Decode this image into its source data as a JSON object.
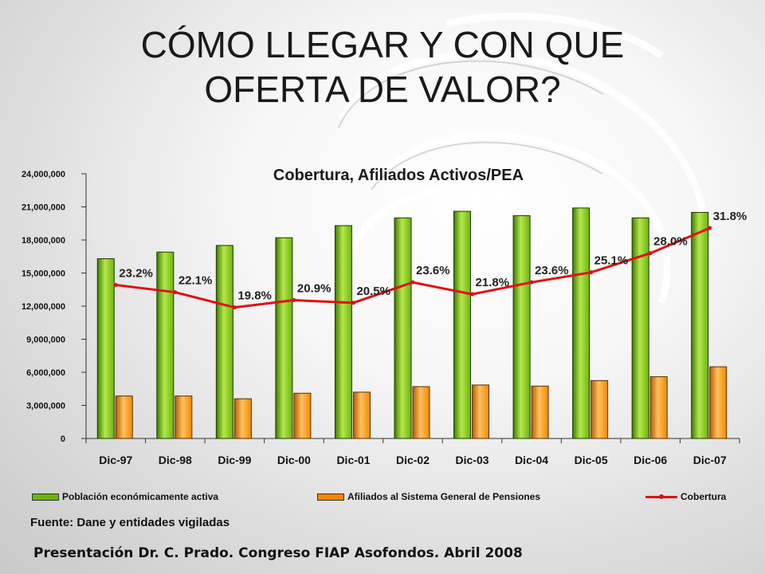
{
  "slide": {
    "title_line1": "CÓMO LLEGAR Y CON QUE",
    "title_line2": "OFERTA DE VALOR?",
    "source": "Fuente: Dane y entidades vigiladas",
    "presenter": "Presentación Dr. C. Prado. Congreso FIAP Asofondos. Abril 2008"
  },
  "colors": {
    "pea": "#6db30e",
    "afiliados": "#f08a00",
    "cobertura": "#e01010"
  },
  "chart_data": {
    "type": "bar",
    "title": "Cobertura, Afiliados Activos/PEA",
    "categories": [
      "Dic-97",
      "Dic-98",
      "Dic-99",
      "Dic-00",
      "Dic-01",
      "Dic-02",
      "Dic-03",
      "Dic-04",
      "Dic-05",
      "Dic-06",
      "Dic-07"
    ],
    "ylim": [
      0,
      24000000
    ],
    "yticks": [
      0,
      3000000,
      6000000,
      9000000,
      12000000,
      15000000,
      18000000,
      21000000,
      24000000
    ],
    "ytick_labels": [
      "0",
      "3,000,000",
      "6,000,000",
      "9,000,000",
      "12,000,000",
      "15,000,000",
      "18,000,000",
      "21,000,000",
      "24,000,000"
    ],
    "series": [
      {
        "name": "Población económicamente activa",
        "kind": "bar",
        "values": [
          16300000,
          16900000,
          17500000,
          18200000,
          19300000,
          20000000,
          20600000,
          20200000,
          20900000,
          20000000,
          20500000
        ]
      },
      {
        "name": "Afiliados al Sistema General de Pensiones",
        "kind": "bar",
        "values": [
          3850000,
          3850000,
          3600000,
          4100000,
          4200000,
          4700000,
          4850000,
          4750000,
          5250000,
          5600000,
          6500000
        ]
      },
      {
        "name": "Cobertura",
        "kind": "line",
        "values": [
          23.2,
          22.1,
          19.8,
          20.9,
          20.5,
          23.6,
          21.8,
          23.6,
          25.1,
          28.0,
          31.8
        ],
        "labels": [
          "23.2%",
          "22.1%",
          "19.8%",
          "20.9%",
          "20.5%",
          "23.6%",
          "21.8%",
          "23.6%",
          "25.1%",
          "28.0%",
          "31.8%"
        ]
      }
    ],
    "secondary_ylim": [
      0,
      40
    ],
    "legend": "bottom",
    "grid": false
  }
}
